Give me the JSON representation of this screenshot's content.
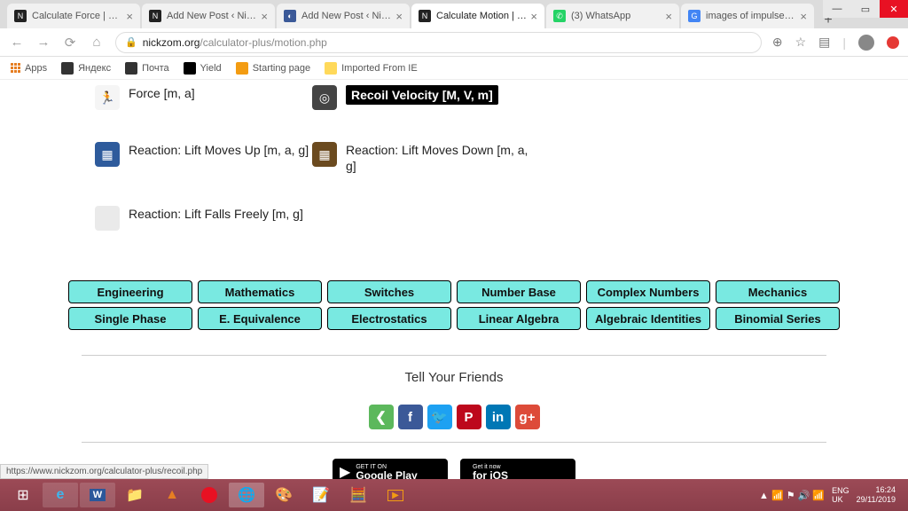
{
  "window": {
    "minimize": "—",
    "maximize": "▭",
    "close": "✕"
  },
  "tabs": [
    {
      "title": "Calculate Force | Body",
      "favicon_bg": "#222",
      "favicon_txt": "N"
    },
    {
      "title": "Add New Post ‹ Nickzo…",
      "favicon_bg": "#222",
      "favicon_txt": "N"
    },
    {
      "title": "Add New Post ‹ Nickzo…",
      "favicon_bg": "#3b5998",
      "favicon_txt": "◐"
    },
    {
      "title": "Calculate Motion | Body",
      "favicon_bg": "#222",
      "favicon_txt": "N",
      "active": true
    },
    {
      "title": "(3) WhatsApp",
      "favicon_bg": "#25d366",
      "favicon_txt": "✆"
    },
    {
      "title": "images of impulse - Go…",
      "favicon_bg": "#4285f4",
      "favicon_txt": "G"
    }
  ],
  "new_tab": "+",
  "addr": {
    "lock": "🔒",
    "domain": "nickzom.org",
    "path": "/calculator-plus/motion.php"
  },
  "bookmarks": [
    {
      "label": "Apps",
      "icon_bg": "#fff"
    },
    {
      "label": "Яндекс",
      "icon_bg": "#333"
    },
    {
      "label": "Почта",
      "icon_bg": "#333"
    },
    {
      "label": "Yield",
      "icon_bg": "#000"
    },
    {
      "label": "Starting page",
      "icon_bg": "#f39c12"
    },
    {
      "label": "Imported From IE",
      "icon_bg": "#ffd95a"
    }
  ],
  "calc": {
    "row1": [
      {
        "label": "Force [m, a]",
        "icon_bg": "#f5f5f5",
        "icon_txt": "🏃",
        "selected": false
      },
      {
        "label": "Recoil Velocity [M, V, m]",
        "icon_bg": "#444",
        "icon_txt": "◎",
        "selected": true
      }
    ],
    "row2": [
      {
        "label": "Reaction: Lift Moves Up [m, a, g]",
        "icon_bg": "#2e5b9c",
        "icon_txt": "▦"
      },
      {
        "label": "Reaction: Lift Moves Down [m, a, g]",
        "icon_bg": "#6b4a1f",
        "icon_txt": "▦"
      }
    ],
    "row3": [
      {
        "label": "Reaction: Lift Falls Freely [m, g]",
        "icon_bg": "#eaeaea",
        "icon_txt": ""
      }
    ]
  },
  "categories": {
    "row1": [
      "Engineering",
      "Mathematics",
      "Switches",
      "Number Base",
      "Complex Numbers",
      "Mechanics"
    ],
    "row2": [
      "Single Phase",
      "E. Equivalence",
      "Electrostatics",
      "Linear Algebra",
      "Algebraic Identities",
      "Binomial Series"
    ]
  },
  "tell_friends": "Tell Your Friends",
  "share": [
    {
      "glyph": "❮",
      "bg": "#5cb85c"
    },
    {
      "glyph": "f",
      "bg": "#3b5998"
    },
    {
      "glyph": "🐦",
      "bg": "#1da1f2"
    },
    {
      "glyph": "P",
      "bg": "#bd081c"
    },
    {
      "glyph": "in",
      "bg": "#0077b5"
    },
    {
      "glyph": "g+",
      "bg": "#dd4b39"
    }
  ],
  "stores": {
    "google": {
      "small": "GET IT ON",
      "big": "Google Play",
      "icon": "▶"
    },
    "ios": {
      "small": "Get it now",
      "big": "for iOS",
      "icon": ""
    }
  },
  "status_link": "https://www.nickzom.org/calculator-plus/recoil.php",
  "taskbar": {
    "lang1": "ENG",
    "lang2": "UK",
    "time": "16:24",
    "date": "29/11/2019"
  }
}
